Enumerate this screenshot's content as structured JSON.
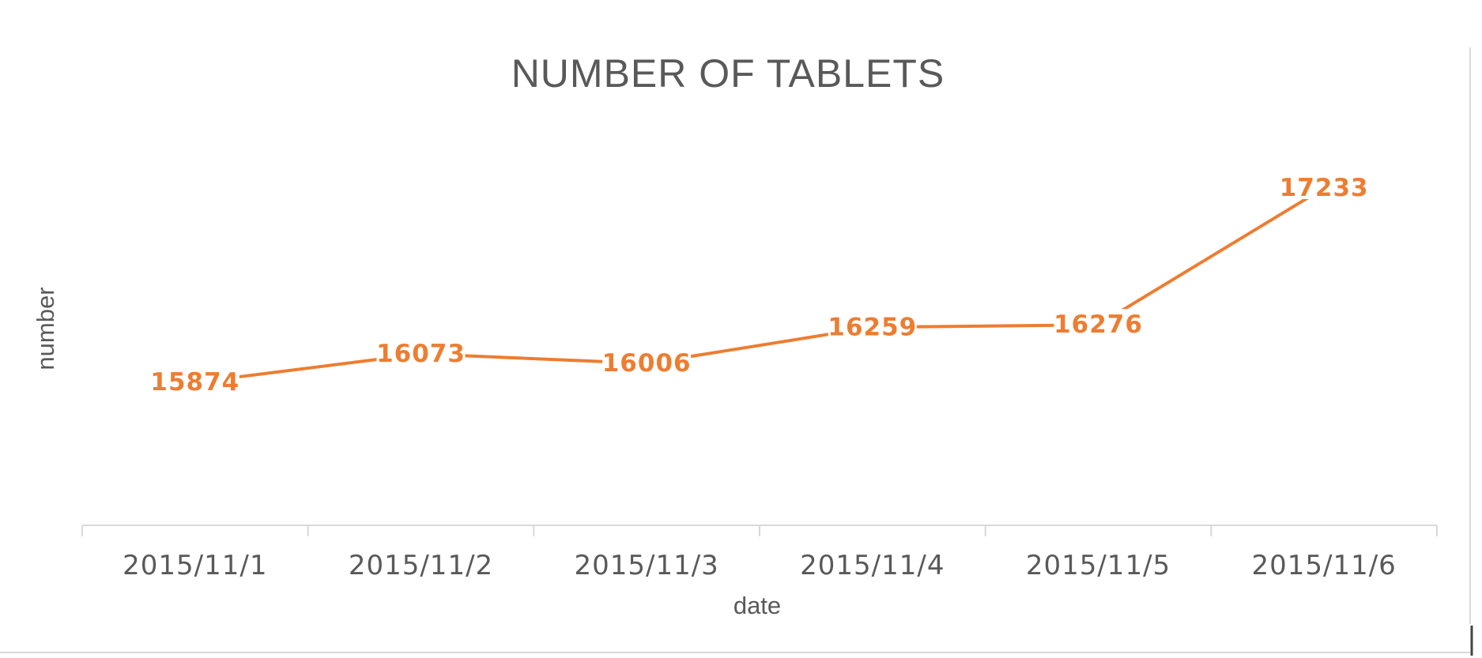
{
  "chart_data": {
    "type": "line",
    "title": "NUMBER OF TABLETS",
    "xlabel": "date",
    "ylabel": "number",
    "categories": [
      "2015/11/1",
      "2015/11/2",
      "2015/11/3",
      "2015/11/4",
      "2015/11/5",
      "2015/11/6"
    ],
    "series": [
      {
        "values": [
          15874,
          16073,
          16006,
          16259,
          16276,
          17233
        ],
        "color": "#ED7D31"
      }
    ],
    "data_labels": true,
    "grid": false,
    "legend": "none"
  },
  "colors": {
    "background": "#ffffff",
    "text": "#595959",
    "axis": "#d9d9d9",
    "series": "#ED7D31"
  }
}
